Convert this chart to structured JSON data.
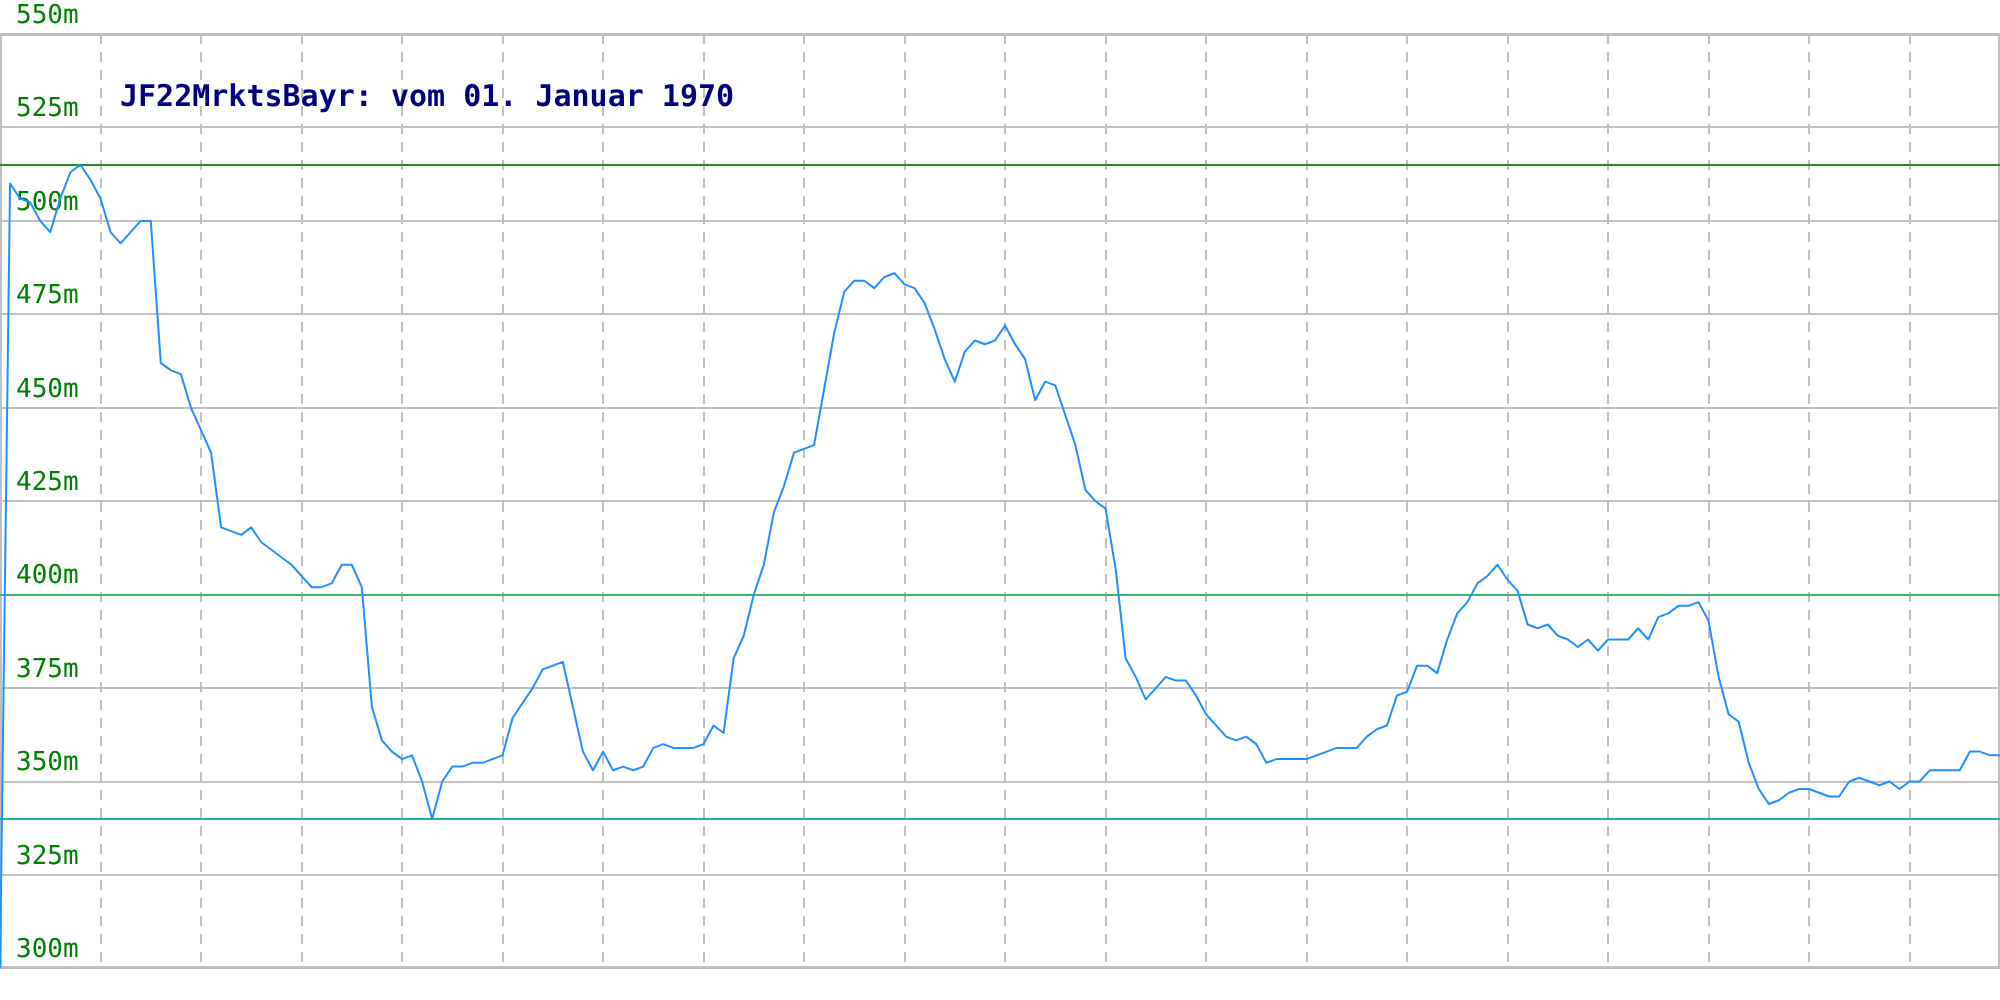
{
  "chart_data": {
    "type": "line",
    "title": "JF22MrktsBayr: vom 01. Januar 1970",
    "categories": [
      null,
      null,
      null,
      null,
      null,
      null,
      null,
      null,
      null,
      null,
      null,
      null,
      null,
      null,
      null,
      null,
      null,
      null,
      null,
      null,
      null,
      null,
      null,
      null,
      null,
      null,
      null,
      null,
      null,
      null,
      null,
      null,
      null,
      null,
      null,
      null,
      null,
      null,
      null,
      null,
      null,
      null,
      null,
      null,
      null,
      null,
      null,
      null,
      null,
      null,
      null,
      null,
      null,
      null,
      null,
      null,
      null,
      null,
      null,
      null,
      null,
      null,
      null,
      null,
      null,
      null,
      null,
      null,
      null,
      null,
      null,
      null,
      null,
      null,
      null,
      null,
      null,
      null,
      null,
      null,
      null,
      null,
      null,
      null,
      null,
      null,
      null,
      null,
      null,
      null,
      null,
      null,
      null,
      null,
      null,
      null,
      null,
      null,
      null,
      null,
      null,
      null,
      null,
      null,
      null,
      null,
      null,
      null,
      null,
      null,
      null,
      null,
      null,
      null,
      null,
      null,
      null,
      null,
      null,
      null,
      null,
      null,
      null,
      null,
      null,
      null,
      null,
      null,
      null,
      null,
      null,
      null,
      null,
      null,
      null,
      null,
      null,
      null,
      null,
      null,
      null,
      null,
      null,
      null,
      null,
      null,
      null,
      null,
      null,
      null,
      null,
      null,
      null,
      null,
      null,
      null,
      null,
      null,
      null,
      null,
      null,
      null,
      null,
      null,
      null,
      null,
      null,
      null,
      null,
      null,
      null,
      null,
      null,
      null,
      null,
      null,
      null,
      null,
      null,
      null,
      null,
      null,
      null,
      null,
      null,
      null,
      null,
      null,
      null,
      null,
      null,
      null,
      null,
      null,
      null,
      null,
      null,
      null,
      null,
      null
    ],
    "series": [
      {
        "color": "#1e90ff",
        "values": [
          300,
          510,
          506,
          505,
          500,
          497,
          506,
          513,
          515,
          511,
          506,
          497,
          494,
          497,
          500,
          500,
          462,
          460,
          459,
          450,
          444,
          438,
          418,
          417,
          416,
          418,
          414,
          412,
          410,
          408,
          405,
          402,
          402,
          403,
          408,
          408,
          402,
          370,
          361,
          358,
          356,
          357,
          350,
          340,
          350,
          354,
          354,
          355,
          355,
          356,
          357,
          367,
          371,
          375,
          380,
          381,
          382,
          370,
          358,
          353,
          358,
          353,
          354,
          353,
          354,
          359,
          360,
          359,
          359,
          359,
          360,
          365,
          363,
          383,
          389,
          400,
          408,
          422,
          429,
          438,
          439,
          440,
          455,
          470,
          481,
          484,
          484,
          482,
          485,
          486,
          483,
          482,
          478,
          471,
          463,
          457,
          465,
          468,
          467,
          468,
          472,
          467,
          463,
          452,
          457,
          456,
          448,
          440,
          428,
          425,
          423,
          407,
          383,
          378,
          372,
          375,
          378,
          377,
          377,
          373,
          368,
          365,
          362,
          361,
          362,
          360,
          355,
          356,
          356,
          356,
          356,
          357,
          358,
          359,
          359,
          359,
          362,
          364,
          365,
          373,
          374,
          381,
          381,
          379,
          388,
          395,
          398,
          403,
          405,
          408,
          404,
          401,
          392,
          391,
          392,
          389,
          388,
          386,
          388,
          385,
          388,
          388,
          388,
          391,
          388,
          394,
          395,
          397,
          397,
          398,
          393,
          378,
          368,
          366,
          355,
          348,
          344,
          345,
          347,
          348,
          348,
          347,
          346,
          346,
          350,
          351,
          350,
          349,
          350,
          348,
          350,
          350,
          353,
          353,
          353,
          353,
          358,
          358,
          357,
          357
        ]
      }
    ],
    "ylim": [
      300,
      550
    ],
    "yticks": [
      {
        "value": 300,
        "label": "300m"
      },
      {
        "value": 325,
        "label": "325m"
      },
      {
        "value": 350,
        "label": "350m"
      },
      {
        "value": 375,
        "label": "375m"
      },
      {
        "value": 400,
        "label": "400m"
      },
      {
        "value": 425,
        "label": "425m"
      },
      {
        "value": 450,
        "label": "450m"
      },
      {
        "value": 475,
        "label": "475m"
      },
      {
        "value": 500,
        "label": "500m"
      },
      {
        "value": 525,
        "label": "525m"
      },
      {
        "value": 550,
        "label": "550m"
      }
    ],
    "grid": true,
    "tick_labels": "y",
    "marker": "none",
    "ref_lines": [
      {
        "axis": "y",
        "value": 515,
        "color": "#228b22"
      },
      {
        "axis": "y",
        "value": 400,
        "color": "#3cb371"
      },
      {
        "axis": "y",
        "value": 340,
        "color": "#20b2aa"
      }
    ]
  }
}
